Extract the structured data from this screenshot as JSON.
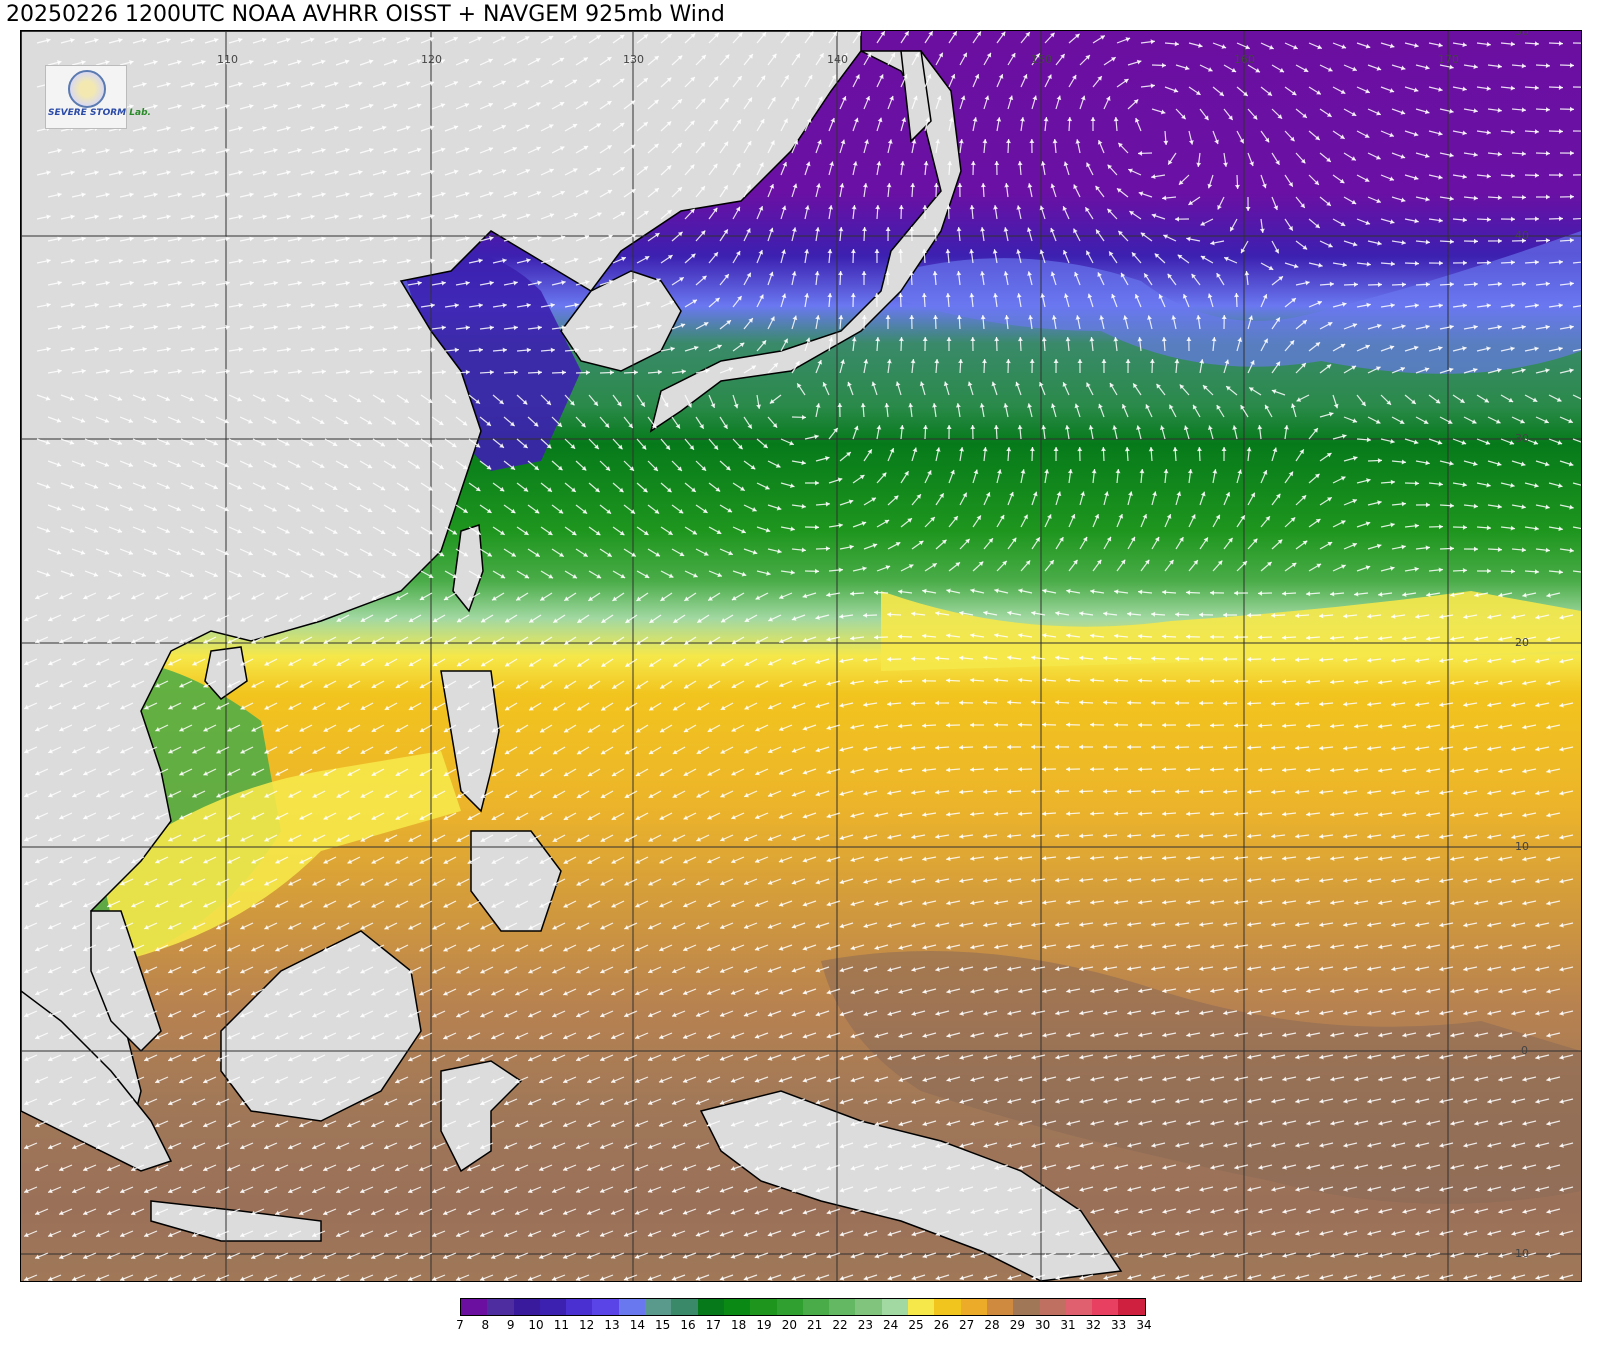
{
  "title": "20250226 1200UTC NOAA AVHRR OISST + NAVGEM 925mb Wind",
  "logo": {
    "icon": "university-seal-icon",
    "text_main": "SEVERE STORM",
    "text_lab": "Lab."
  },
  "map": {
    "projection": "equirectangular",
    "lon_range": [
      100,
      175
    ],
    "lat_range": [
      -10,
      50
    ],
    "lon_labels": [
      "110",
      "120",
      "130",
      "140",
      "150",
      "160",
      "170"
    ],
    "lat_labels": [
      "50",
      "40",
      "30",
      "20",
      "10",
      "0",
      "-10"
    ],
    "field": "sea surface temperature (°C) with 925mb wind streamlines",
    "wind_pattern": "cyclonic low near 155E 46N; westerlies north of 35N; clockwise subtropical high near 145E 28N; northeast trades south of 25N"
  },
  "colorbar": {
    "ticks": [
      "7",
      "8",
      "9",
      "10",
      "11",
      "12",
      "13",
      "14",
      "15",
      "16",
      "17",
      "18",
      "19",
      "20",
      "21",
      "22",
      "23",
      "24",
      "25",
      "26",
      "27",
      "28",
      "29",
      "30",
      "31",
      "32",
      "33",
      "34"
    ],
    "colors": [
      "#6a0fa0",
      "#4e2da0",
      "#3a1a9c",
      "#3c20b0",
      "#4a30d0",
      "#5a44e8",
      "#6a78f0",
      "#5a9a8c",
      "#3a8a6a",
      "#067a1a",
      "#0a8a14",
      "#1e961e",
      "#30a030",
      "#4aac48",
      "#64b864",
      "#80c47e",
      "#a2d8a2",
      "#f6e84a",
      "#f2c41e",
      "#ecac2a",
      "#d08a40",
      "#a07858",
      "#c07060",
      "#e06070",
      "#e84060",
      "#d02040"
    ]
  },
  "colors": {
    "land": "#dcdcdc",
    "coastline": "#000000",
    "grid": "#303030",
    "streamline": "#ffffff"
  }
}
